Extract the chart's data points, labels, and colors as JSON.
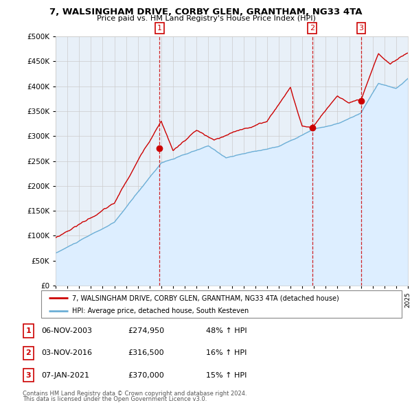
{
  "title": "7, WALSINGHAM DRIVE, CORBY GLEN, GRANTHAM, NG33 4TA",
  "subtitle": "Price paid vs. HM Land Registry's House Price Index (HPI)",
  "legend_line1": "7, WALSINGHAM DRIVE, CORBY GLEN, GRANTHAM, NG33 4TA (detached house)",
  "legend_line2": "HPI: Average price, detached house, South Kesteven",
  "footer1": "Contains HM Land Registry data © Crown copyright and database right 2024.",
  "footer2": "This data is licensed under the Open Government Licence v3.0.",
  "sale1_label": "1",
  "sale1_date": "06-NOV-2003",
  "sale1_price": "£274,950",
  "sale1_pct": "48% ↑ HPI",
  "sale1_x": 2003.85,
  "sale1_y": 274950,
  "sale2_label": "2",
  "sale2_date": "03-NOV-2016",
  "sale2_price": "£316,500",
  "sale2_pct": "16% ↑ HPI",
  "sale2_x": 2016.85,
  "sale2_y": 316500,
  "sale3_label": "3",
  "sale3_date": "07-JAN-2021",
  "sale3_price": "£370,000",
  "sale3_pct": "15% ↑ HPI",
  "sale3_x": 2021.03,
  "sale3_y": 370000,
  "hpi_color": "#6baed6",
  "hpi_fill_color": "#ddeeff",
  "sale_color": "#cc0000",
  "grid_color": "#cccccc",
  "background_color": "#ffffff",
  "chart_bg": "#e8f0f8",
  "ylim": [
    0,
    500000
  ],
  "yticks": [
    0,
    50000,
    100000,
    150000,
    200000,
    250000,
    300000,
    350000,
    400000,
    450000,
    500000
  ],
  "xlim_start": 1995.0,
  "xlim_end": 2025.0
}
